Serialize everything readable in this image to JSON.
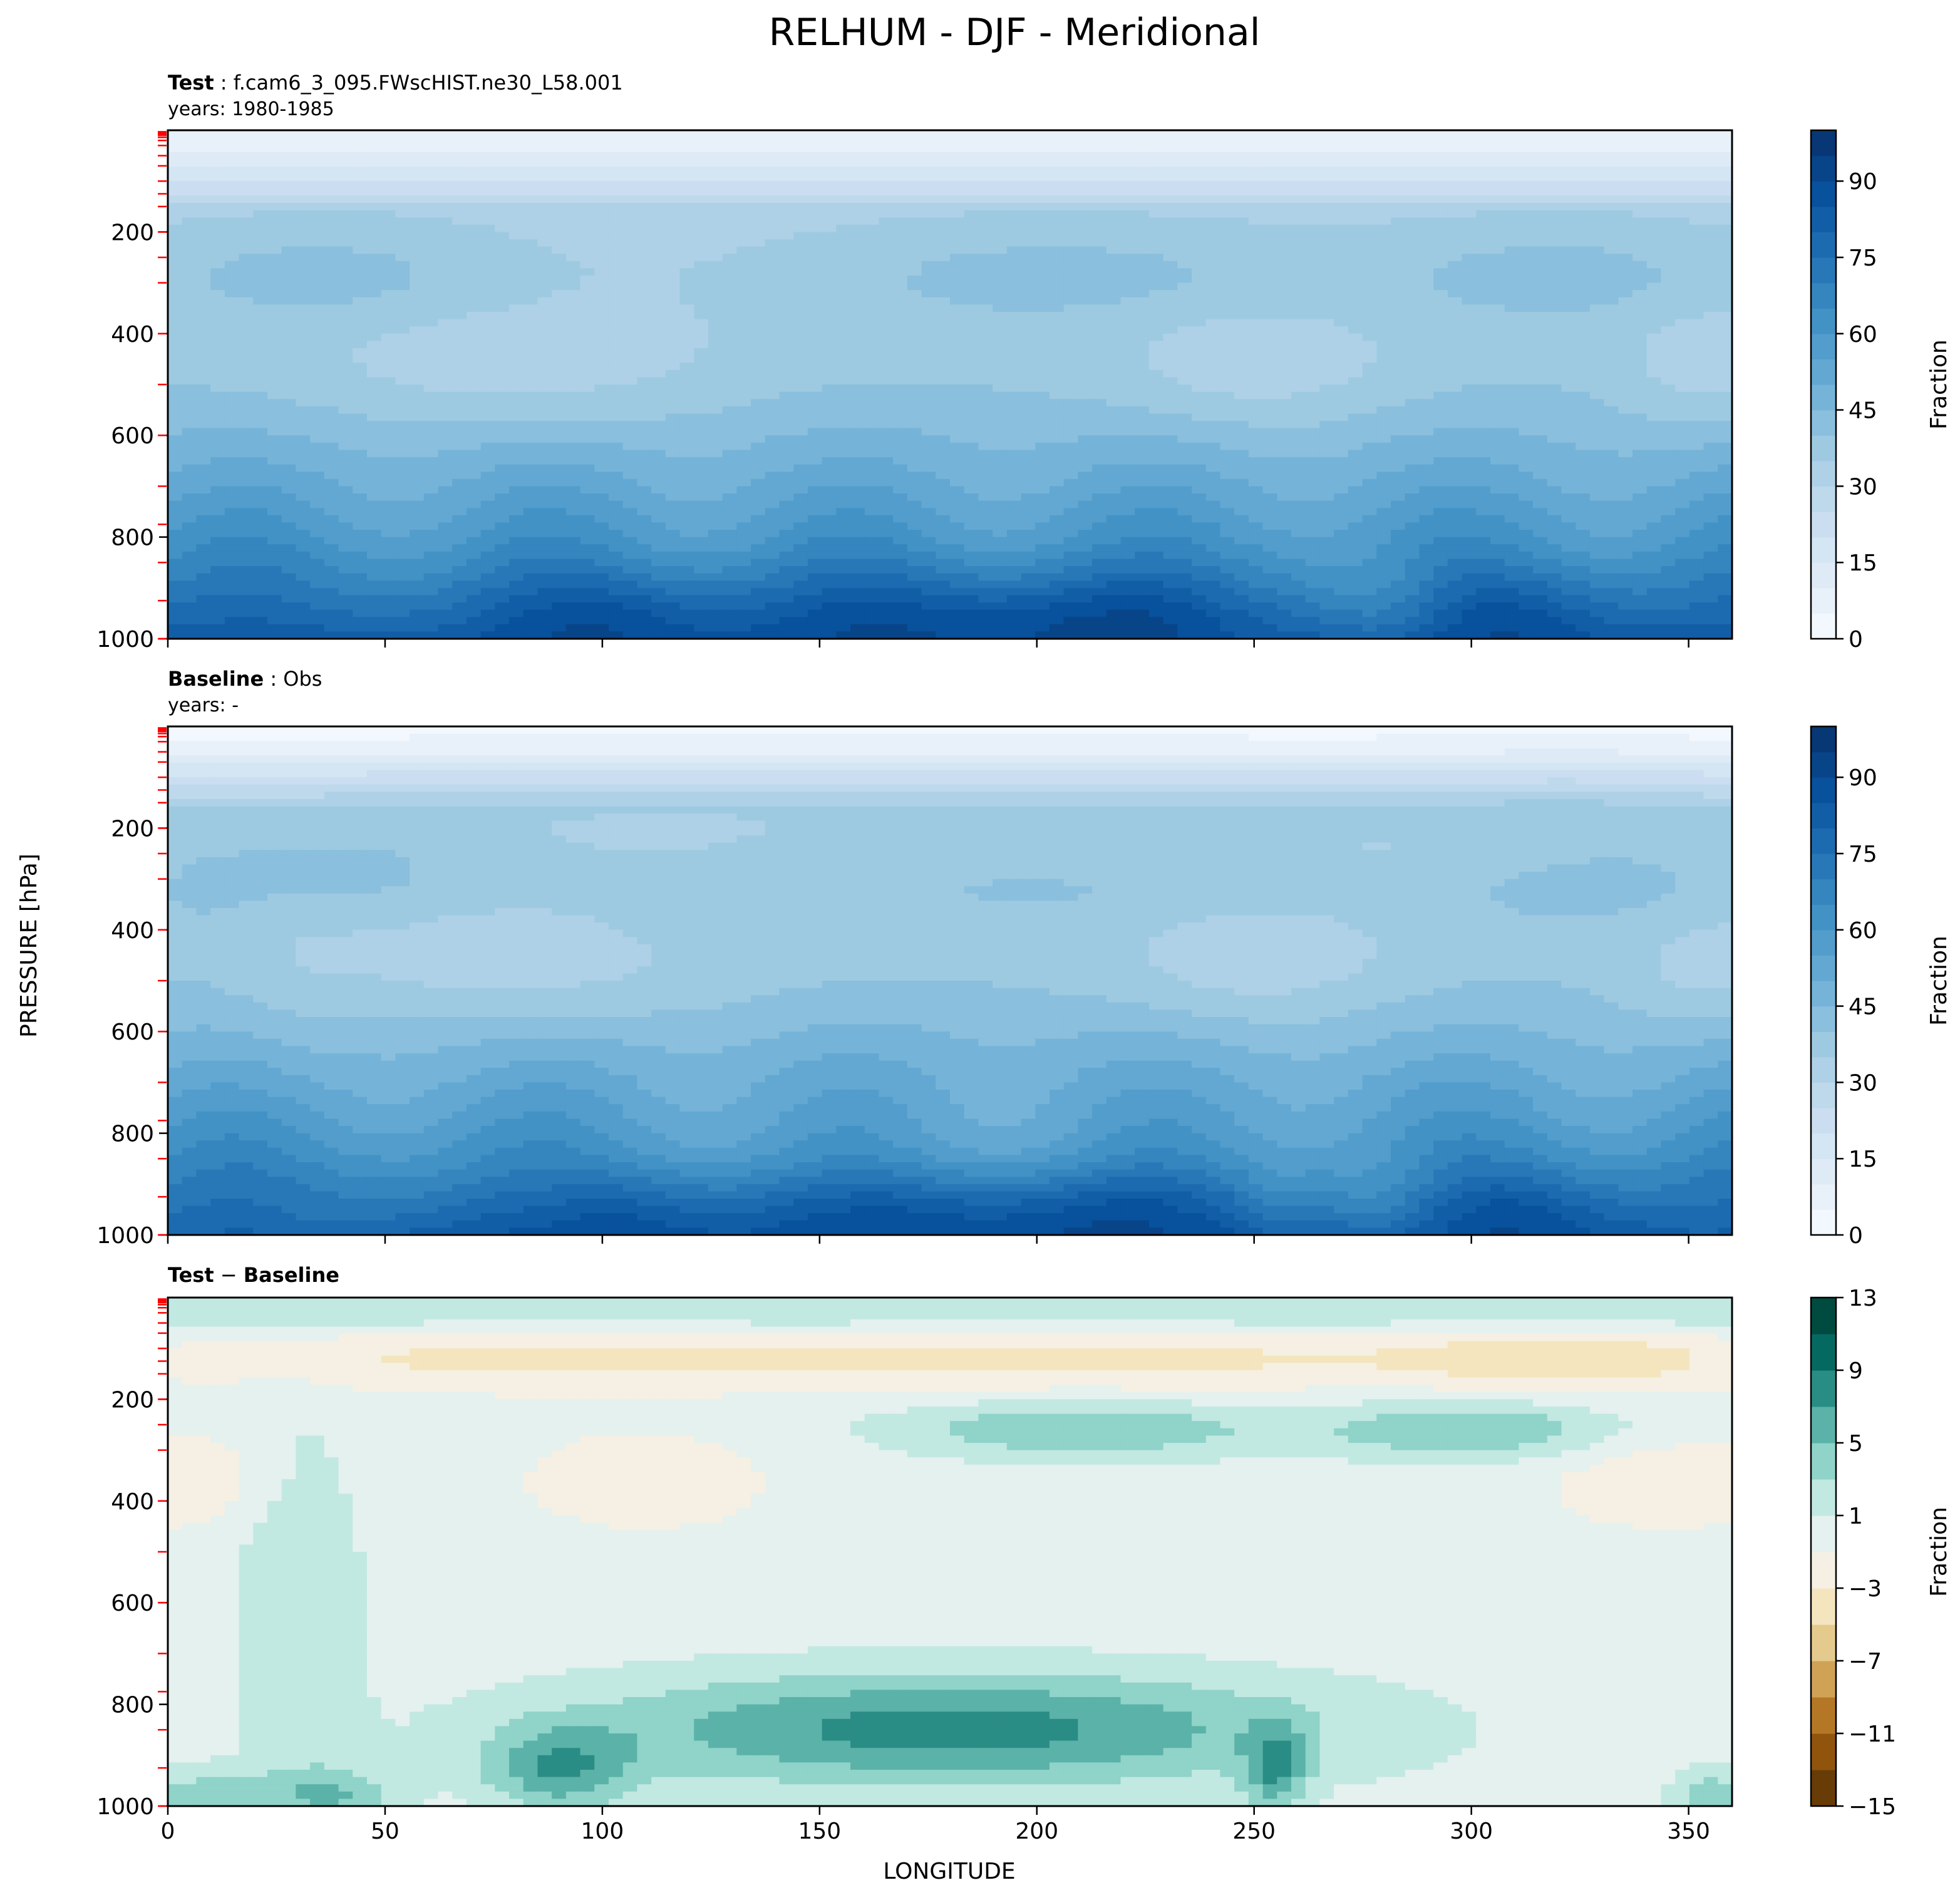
{
  "figure": {
    "title": "RELHUM - DJF - Meridional",
    "ylabel_shared": "PRESSURE [hPa]",
    "xlabel": "LONGITUDE"
  },
  "chart_data": [
    {
      "type": "heatmap",
      "id": "test",
      "title_bold": "Test",
      "title_sep": " : ",
      "title_text": "f.cam6_3_095.FWscHIST.ne30_L58.001",
      "subtitle": "years: 1980-1985",
      "xlim": [
        0,
        360
      ],
      "ylim": [
        1000,
        0
      ],
      "xticks": [
        0,
        50,
        100,
        150,
        200,
        250,
        300,
        350
      ],
      "yticks": [
        200,
        400,
        600,
        800,
        1000
      ],
      "colorbar": {
        "label": "Fraction",
        "cmap": "Blues",
        "levels": [
          0,
          5,
          10,
          15,
          20,
          25,
          30,
          35,
          40,
          45,
          50,
          55,
          60,
          65,
          70,
          75,
          80,
          85,
          90,
          95,
          100
        ],
        "ticks": [
          "0",
          "15",
          "30",
          "45",
          "60",
          "75",
          "90"
        ]
      },
      "field_model": "relative humidity (%) vs pressure and longitude; dry aloft, moist near the surface",
      "pressure_levels_marked": [
        3,
        5,
        7,
        10,
        14,
        20,
        30,
        50,
        70,
        100,
        125,
        150,
        200,
        250,
        300,
        400,
        500,
        600,
        700,
        775,
        850,
        925,
        1000
      ]
    },
    {
      "type": "heatmap",
      "id": "baseline",
      "title_bold": "Baseline",
      "title_sep": " : ",
      "title_text": "Obs",
      "subtitle": "years: -",
      "xlim": [
        0,
        360
      ],
      "ylim": [
        1000,
        0
      ],
      "xticks": [
        0,
        50,
        100,
        150,
        200,
        250,
        300,
        350
      ],
      "yticks": [
        200,
        400,
        600,
        800,
        1000
      ],
      "colorbar": {
        "label": "Fraction",
        "cmap": "Blues",
        "levels": [
          0,
          5,
          10,
          15,
          20,
          25,
          30,
          35,
          40,
          45,
          50,
          55,
          60,
          65,
          70,
          75,
          80,
          85,
          90,
          95,
          100
        ],
        "ticks": [
          "0",
          "15",
          "30",
          "45",
          "60",
          "75",
          "90"
        ]
      },
      "field_model": "relative humidity (%) vs pressure and longitude; observational reference",
      "pressure_levels_marked": [
        3,
        5,
        7,
        10,
        14,
        20,
        30,
        50,
        70,
        100,
        125,
        150,
        200,
        250,
        300,
        400,
        500,
        600,
        700,
        775,
        850,
        925,
        1000
      ]
    },
    {
      "type": "heatmap",
      "id": "diff",
      "title_bold_a": "Test",
      "title_minus": " − ",
      "title_bold_b": "Baseline",
      "xlim": [
        0,
        360
      ],
      "ylim": [
        1000,
        0
      ],
      "xticks": [
        0,
        50,
        100,
        150,
        200,
        250,
        300,
        350
      ],
      "yticks": [
        200,
        400,
        600,
        800,
        1000
      ],
      "colorbar": {
        "label": "Fraction",
        "cmap": "BrBG",
        "levels": [
          -15,
          -13,
          -11,
          -9,
          -7,
          -5,
          -3,
          -1,
          1,
          3,
          5,
          7,
          9,
          11,
          13
        ],
        "ticks": [
          "13",
          "9",
          "5",
          "1",
          "−3",
          "−7",
          "−11",
          "−15"
        ]
      },
      "field_model": "difference (Test − Baseline) in % RH; positive moister (green), negative drier (brown)",
      "pressure_levels_marked": [
        3,
        5,
        7,
        10,
        14,
        20,
        30,
        50,
        70,
        100,
        125,
        150,
        200,
        250,
        300,
        400,
        500,
        600,
        700,
        775,
        850,
        925,
        1000
      ]
    }
  ]
}
